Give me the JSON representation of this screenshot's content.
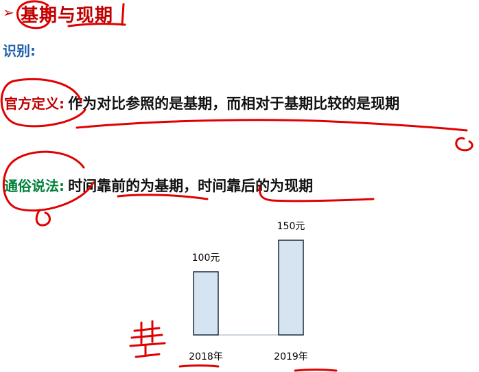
{
  "slide": {
    "title_arrow": "➢",
    "title": "基期与现期",
    "identify_label": "识别:",
    "official": {
      "label": "官方定义:",
      "text": "作为对比参照的是基期，而相对于基期比较的是现期"
    },
    "colloquial": {
      "label": "通俗说法:",
      "text": "时间靠前的为基期，时间靠后的为现期"
    },
    "handwritten_note": "基"
  },
  "colors": {
    "accent_red": "#c00000",
    "label_blue": "#1f5fa8",
    "label_green": "#00803a",
    "bar_fill": "#d6e3f0",
    "bar_stroke": "#1a2a40"
  },
  "chart_data": {
    "type": "bar",
    "categories": [
      "2018年",
      "2019年"
    ],
    "values": [
      100,
      150
    ],
    "data_labels": [
      "100元",
      "150元"
    ],
    "title": "",
    "xlabel": "",
    "ylabel": "",
    "ylim": [
      0,
      180
    ],
    "grid": false
  }
}
